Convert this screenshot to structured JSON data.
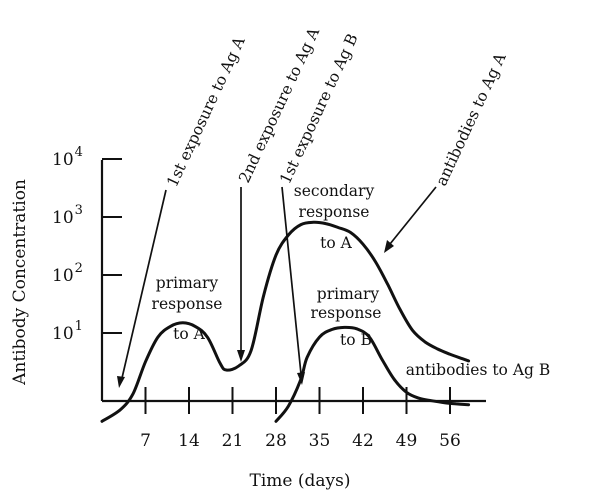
{
  "chart_data": {
    "type": "line",
    "xlabel": "Time (days)",
    "ylabel": "Antibody Concentration",
    "x_ticks": [
      "7",
      "14",
      "21",
      "28",
      "35",
      "42",
      "49",
      "56"
    ],
    "x_tick_values": [
      7,
      14,
      21,
      28,
      35,
      42,
      49,
      56
    ],
    "xlim": [
      0,
      60
    ],
    "y_scale": "log",
    "y_ticks": [
      {
        "base": "10",
        "exp": "1",
        "value": 10
      },
      {
        "base": "10",
        "exp": "2",
        "value": 100
      },
      {
        "base": "10",
        "exp": "3",
        "value": 1000
      },
      {
        "base": "10",
        "exp": "4",
        "value": 10000
      }
    ],
    "ylim": [
      0.3,
      20000
    ],
    "series": [
      {
        "name": "antibodies to Ag A",
        "x": [
          0,
          3,
          5,
          7,
          9,
          11,
          13,
          15,
          17,
          19,
          20,
          22,
          24,
          26,
          28,
          30,
          32,
          34,
          36,
          38,
          40,
          42,
          44,
          46,
          48,
          50,
          52,
          54,
          56,
          58,
          59
        ],
        "y": [
          0.3,
          0.48,
          0.9,
          3.2,
          8.5,
          13,
          15,
          13,
          8.4,
          3,
          2.3,
          2.7,
          5,
          44,
          220,
          490,
          740,
          810,
          770,
          660,
          540,
          340,
          170,
          68,
          25,
          11,
          7,
          5.3,
          4.3,
          3.6,
          3.3
        ]
      },
      {
        "name": "antibodies to Ag B",
        "x": [
          28,
          30,
          32,
          33,
          35,
          37,
          39,
          41,
          43,
          45,
          47,
          49,
          51,
          53,
          55,
          57,
          59
        ],
        "y": [
          0.3,
          0.55,
          1.6,
          3.8,
          8.5,
          11.5,
          12.5,
          11.8,
          8.6,
          3.6,
          1.6,
          0.95,
          0.75,
          0.68,
          0.63,
          0.6,
          0.58
        ]
      }
    ],
    "annotations": {
      "first_exposure_a": "1st exposure to Ag A",
      "second_exposure_a": "2nd exposure to Ag A",
      "first_exposure_b": "1st exposure to Ag B",
      "antibodies_a": "antibodies to Ag A",
      "antibodies_b": "antibodies to Ag B",
      "primary_a": [
        "primary",
        "response",
        "to A"
      ],
      "secondary_a": [
        "secondary",
        "response",
        "to A"
      ],
      "primary_b": [
        "primary",
        "response",
        "to B"
      ]
    },
    "grid": false
  }
}
